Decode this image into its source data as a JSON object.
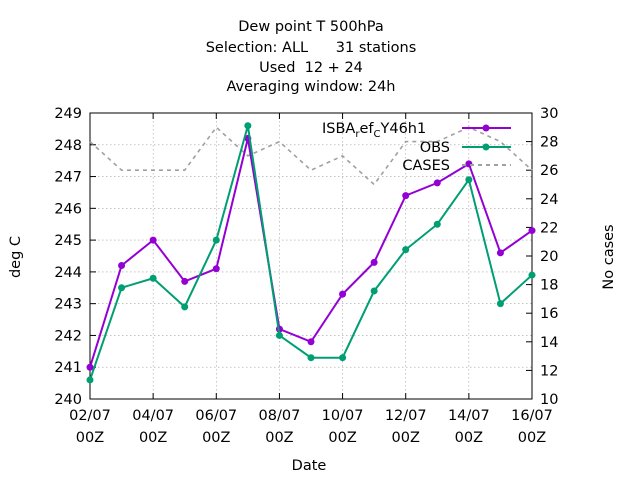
{
  "chart_data": {
    "type": "line",
    "title_lines": [
      "Dew point T 500hPa",
      "Selection: ALL      31 stations",
      "Used  12 + 24",
      "Averaging window: 24h"
    ],
    "xlabel": "Date",
    "ylabel": "deg C",
    "y2label": "No cases",
    "x_tick_labels": [
      [
        "02/07",
        "00Z"
      ],
      [
        "04/07",
        "00Z"
      ],
      [
        "06/07",
        "00Z"
      ],
      [
        "08/07",
        "00Z"
      ],
      [
        "10/07",
        "00Z"
      ],
      [
        "12/07",
        "00Z"
      ],
      [
        "14/07",
        "00Z"
      ],
      [
        "16/07",
        "00Z"
      ]
    ],
    "x": [
      "02/07",
      "03/07",
      "04/07",
      "05/07",
      "06/07",
      "07/07",
      "08/07",
      "09/07",
      "10/07",
      "11/07",
      "12/07",
      "13/07",
      "14/07",
      "15/07",
      "16/07"
    ],
    "ylim": [
      240,
      249
    ],
    "y_ticks": [
      240,
      241,
      242,
      243,
      244,
      245,
      246,
      247,
      248,
      249
    ],
    "y2lim": [
      10,
      30
    ],
    "y2_ticks": [
      10,
      12,
      14,
      16,
      18,
      20,
      22,
      24,
      26,
      28,
      30
    ],
    "grid": true,
    "legend_position": "top-right",
    "series": [
      {
        "name": "ISBA_ref_CY46h1",
        "legend_main": "ISBA",
        "legend_sub1": "r",
        "legend_mid": "ef",
        "legend_sub2": "C",
        "legend_end": "Y46h1",
        "axis": "y1",
        "color": "#9400D3",
        "values": [
          241.0,
          244.2,
          245.0,
          243.7,
          244.1,
          248.2,
          242.2,
          241.8,
          243.3,
          244.3,
          246.4,
          246.8,
          247.4,
          244.6,
          245.3
        ]
      },
      {
        "name": "OBS",
        "axis": "y1",
        "color": "#009E73",
        "values": [
          240.6,
          243.5,
          243.8,
          242.9,
          245.0,
          248.6,
          242.0,
          241.3,
          241.3,
          243.4,
          244.7,
          245.5,
          246.9,
          243.0,
          243.9
        ]
      },
      {
        "name": "CASES",
        "axis": "y2",
        "color": "#A0A0A0",
        "dashed": true,
        "values": [
          28,
          26,
          26,
          26,
          29,
          27,
          28,
          26,
          27,
          25,
          28,
          28,
          29,
          28,
          26
        ]
      }
    ]
  }
}
